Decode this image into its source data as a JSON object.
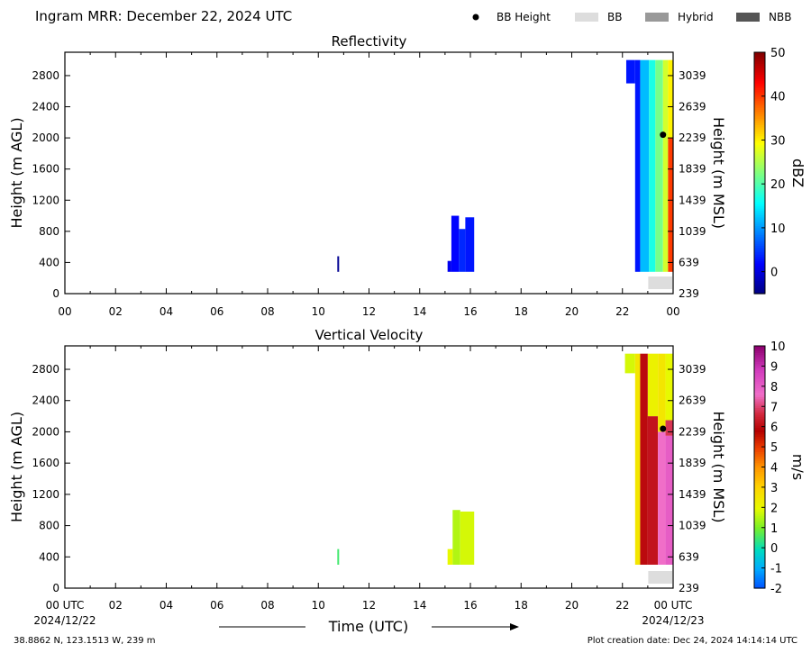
{
  "header": {
    "title": "Ingram MRR:  December 22, 2024 UTC",
    "legend": [
      {
        "label": "BB Height",
        "kind": "dot",
        "color": "#000000"
      },
      {
        "label": "BB",
        "kind": "swatch",
        "color": "#dddddd"
      },
      {
        "label": "Hybrid",
        "kind": "swatch",
        "color": "#999999"
      },
      {
        "label": "NBB",
        "kind": "swatch",
        "color": "#555555"
      }
    ]
  },
  "footer": {
    "location": "38.8862 N, 123.1513 W, 239 m",
    "created": "Plot creation date: Dec 24, 2024 14:14:14 UTC",
    "start_date": "2024/12/22",
    "end_date": "2024/12/23",
    "time_label": "Time (UTC)"
  },
  "chart_data": [
    {
      "type": "heatmap",
      "title": "Reflectivity",
      "xlabel": "",
      "ylabel": "Height (m AGL)",
      "ylabel_right": "Height (m MSL)",
      "x_ticks": [
        "00",
        "02",
        "04",
        "06",
        "08",
        "10",
        "12",
        "14",
        "16",
        "18",
        "20",
        "22",
        "00"
      ],
      "xlim_hours": [
        0,
        24
      ],
      "ylim": [
        0,
        3100
      ],
      "y_ticks": [
        0,
        400,
        800,
        1200,
        1600,
        2000,
        2400,
        2800
      ],
      "y_ticks_right": [
        239,
        639,
        1039,
        1439,
        1839,
        2239,
        2639,
        3039
      ],
      "colorbar": {
        "label": "dBZ",
        "min": -5,
        "max": 50,
        "ticks": [
          0,
          10,
          20,
          30,
          40,
          50
        ],
        "colormap": "jet"
      },
      "bb_height": {
        "hour": 23.6,
        "height": 2040
      },
      "bb_bar": {
        "hour_start": 23.0,
        "hour_end": 24.0,
        "type": "BB"
      },
      "echoes": [
        {
          "hour_start": 10.75,
          "hour_end": 10.82,
          "top": 480,
          "bottom": 280,
          "value": -4
        },
        {
          "hour_start": 15.1,
          "hour_end": 15.25,
          "top": 420,
          "bottom": 280,
          "value": 1
        },
        {
          "hour_start": 15.25,
          "hour_end": 15.55,
          "top": 1000,
          "bottom": 280,
          "value": 2
        },
        {
          "hour_start": 15.55,
          "hour_end": 15.8,
          "top": 830,
          "bottom": 280,
          "value": 4
        },
        {
          "hour_start": 15.8,
          "hour_end": 16.15,
          "top": 980,
          "bottom": 280,
          "value": 3
        },
        {
          "hour_start": 22.15,
          "hour_end": 22.5,
          "top": 3000,
          "bottom": 2700,
          "value": 3
        },
        {
          "hour_start": 22.5,
          "hour_end": 22.7,
          "top": 3000,
          "bottom": 280,
          "value": 3
        },
        {
          "hour_start": 22.7,
          "hour_end": 23.05,
          "top": 3000,
          "bottom": 280,
          "value": 12
        },
        {
          "hour_start": 23.05,
          "hour_end": 23.3,
          "top": 3000,
          "bottom": 280,
          "value": 17
        },
        {
          "hour_start": 23.3,
          "hour_end": 23.6,
          "top": 3000,
          "bottom": 280,
          "value": 22
        },
        {
          "hour_start": 23.6,
          "hour_end": 23.8,
          "top": 3000,
          "bottom": 280,
          "value": 27
        },
        {
          "hour_start": 23.8,
          "hour_end": 24.0,
          "top": 2000,
          "bottom": 280,
          "value": 40
        },
        {
          "hour_start": 23.8,
          "hour_end": 24.0,
          "top": 3000,
          "bottom": 2000,
          "value": 30
        }
      ]
    },
    {
      "type": "heatmap",
      "title": "Vertical Velocity",
      "xlabel": "Time (UTC)",
      "ylabel": "Height (m AGL)",
      "ylabel_right": "Height (m MSL)",
      "x_ticks": [
        "00 UTC",
        "02",
        "04",
        "06",
        "08",
        "10",
        "12",
        "14",
        "16",
        "18",
        "20",
        "22",
        "00 UTC"
      ],
      "xlim_hours": [
        0,
        24
      ],
      "ylim": [
        0,
        3100
      ],
      "y_ticks": [
        0,
        400,
        800,
        1200,
        1600,
        2000,
        2400,
        2800
      ],
      "y_ticks_right": [
        239,
        639,
        1039,
        1439,
        1839,
        2239,
        2639,
        3039
      ],
      "colorbar": {
        "label": "m/s",
        "min": -2,
        "max": 10,
        "ticks": [
          -2,
          -1,
          0,
          1,
          2,
          3,
          4,
          5,
          6,
          7,
          8,
          9,
          10
        ],
        "colormap": "velocity"
      },
      "bb_height": {
        "hour": 23.6,
        "height": 2040
      },
      "bb_bar": {
        "hour_start": 23.0,
        "hour_end": 24.0,
        "type": "BB"
      },
      "echoes": [
        {
          "hour_start": 10.75,
          "hour_end": 10.82,
          "top": 500,
          "bottom": 300,
          "value": 0.5
        },
        {
          "hour_start": 15.1,
          "hour_end": 15.3,
          "top": 500,
          "bottom": 300,
          "value": 2
        },
        {
          "hour_start": 15.3,
          "hour_end": 15.6,
          "top": 1000,
          "bottom": 300,
          "value": 1.5
        },
        {
          "hour_start": 15.6,
          "hour_end": 16.15,
          "top": 980,
          "bottom": 300,
          "value": 1.8
        },
        {
          "hour_start": 22.1,
          "hour_end": 22.5,
          "top": 3000,
          "bottom": 2750,
          "value": 1.8
        },
        {
          "hour_start": 22.5,
          "hour_end": 22.7,
          "top": 3000,
          "bottom": 300,
          "value": 2.5
        },
        {
          "hour_start": 22.7,
          "hour_end": 23.0,
          "top": 3000,
          "bottom": 300,
          "value": 6
        },
        {
          "hour_start": 23.0,
          "hour_end": 23.4,
          "top": 2200,
          "bottom": 300,
          "value": 6.2
        },
        {
          "hour_start": 23.0,
          "hour_end": 23.4,
          "top": 3000,
          "bottom": 2200,
          "value": 2.2
        },
        {
          "hour_start": 23.4,
          "hour_end": 23.7,
          "top": 2000,
          "bottom": 300,
          "value": 7.6
        },
        {
          "hour_start": 23.4,
          "hour_end": 23.7,
          "top": 3000,
          "bottom": 2000,
          "value": 2.5
        },
        {
          "hour_start": 23.7,
          "hour_end": 24.0,
          "top": 1950,
          "bottom": 300,
          "value": 8
        },
        {
          "hour_start": 23.7,
          "hour_end": 24.0,
          "top": 2150,
          "bottom": 1950,
          "value": 6.8
        },
        {
          "hour_start": 23.7,
          "hour_end": 24.0,
          "top": 3000,
          "bottom": 2150,
          "value": 2
        }
      ]
    }
  ]
}
